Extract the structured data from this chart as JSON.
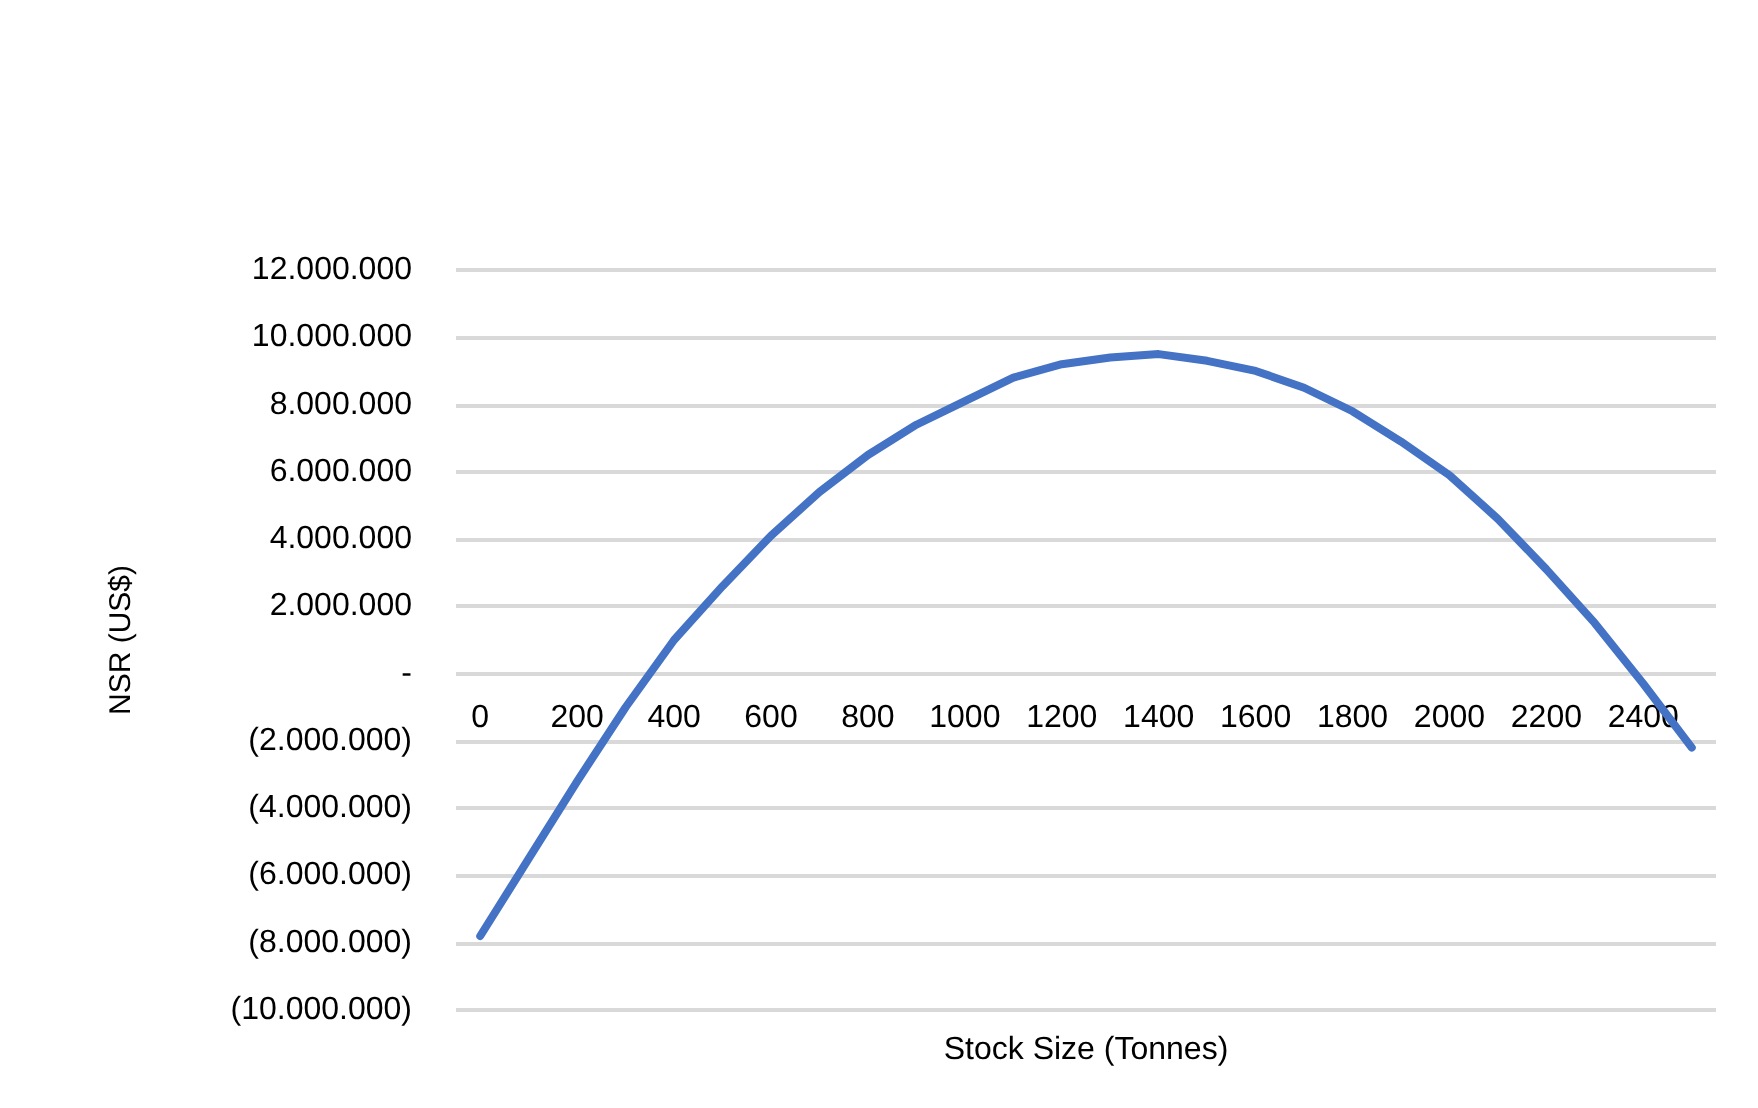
{
  "chart_data": {
    "type": "line",
    "xlabel": "Stock Size (Tonnes)",
    "ylabel": "NSR (US$)",
    "categories": [
      "0",
      null,
      "200",
      null,
      "400",
      null,
      "600",
      null,
      "800",
      null,
      "1000",
      null,
      "1200",
      null,
      "1400",
      null,
      "1600",
      null,
      "1800",
      null,
      "2000",
      null,
      "2200",
      null,
      "2400",
      null
    ],
    "series": [
      {
        "color": "#4472c4",
        "values": [
          -7800000,
          -5500000,
          -3200000,
          -1000000,
          1000000,
          2600000,
          4100000,
          5400000,
          6500000,
          7400000,
          8100000,
          8800000,
          9200000,
          9400000,
          9500000,
          9300000,
          9000000,
          8500000,
          7800000,
          6900000,
          5900000,
          4600000,
          3100000,
          1500000,
          -300000,
          -2200000
        ]
      }
    ],
    "ylim": [
      -10000000,
      12000000
    ],
    "yticks": [
      {
        "value": -10000000,
        "label": "(10.000.000)"
      },
      {
        "value": -8000000,
        "label": "(8.000.000)"
      },
      {
        "value": -6000000,
        "label": "(6.000.000)"
      },
      {
        "value": -4000000,
        "label": "(4.000.000)"
      },
      {
        "value": -2000000,
        "label": "(2.000.000)"
      },
      {
        "value": 0,
        "label": "-"
      },
      {
        "value": 2000000,
        "label": "2.000.000"
      },
      {
        "value": 4000000,
        "label": "4.000.000"
      },
      {
        "value": 6000000,
        "label": "6.000.000"
      },
      {
        "value": 8000000,
        "label": "8.000.000"
      },
      {
        "value": 10000000,
        "label": "10.000.000"
      },
      {
        "value": 12000000,
        "label": "12.000.000"
      }
    ],
    "grid": "y",
    "marker": "none",
    "line_style": "solid"
  }
}
